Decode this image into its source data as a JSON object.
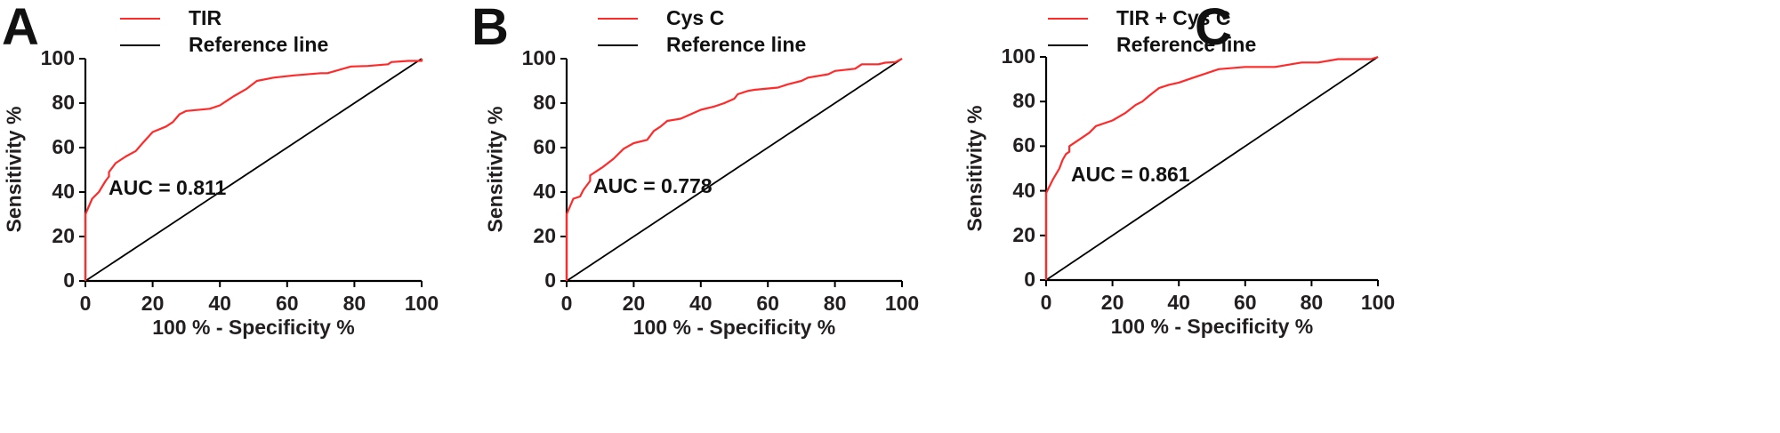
{
  "colors": {
    "roc": "#ff2a2a",
    "reference": "#000000",
    "axis": "#000000",
    "text": "#231f20"
  },
  "chart_data": [
    {
      "type": "line",
      "panel": "A",
      "title": "",
      "legend": [
        "TIR",
        "Reference line"
      ],
      "xlabel": "100 % - Specificity %",
      "ylabel": "Sensitivity %",
      "xlim": [
        0,
        100
      ],
      "ylim": [
        0,
        100
      ],
      "xticks": [
        0,
        20,
        40,
        60,
        80,
        100
      ],
      "yticks": [
        0,
        20,
        40,
        60,
        80,
        100
      ],
      "annotation": "AUC = 0.811",
      "series": [
        {
          "name": "TIR",
          "color": "#ff2a2a",
          "x": [
            0,
            0,
            2,
            4,
            6,
            7,
            7,
            9,
            12,
            15,
            17,
            20,
            24,
            26,
            28,
            30,
            37,
            40,
            44,
            48,
            51,
            56,
            62,
            70,
            72,
            79,
            84,
            90,
            91,
            96,
            100,
            100
          ],
          "y": [
            0,
            30,
            37,
            40,
            45,
            47,
            49,
            53,
            56,
            58.5,
            62,
            67,
            69.5,
            71.5,
            75,
            76.5,
            77.5,
            79,
            83,
            86.5,
            90,
            91.5,
            92.5,
            93.5,
            93.5,
            96.5,
            96.7,
            97.5,
            98.5,
            99,
            99,
            100
          ]
        },
        {
          "name": "Reference line",
          "color": "#000000",
          "x": [
            0,
            100
          ],
          "y": [
            0,
            100
          ]
        }
      ]
    },
    {
      "type": "line",
      "panel": "B",
      "title": "",
      "legend": [
        "Cys C",
        "Reference line"
      ],
      "xlabel": "100 % - Specificity %",
      "ylabel": "Sensitivity %",
      "xlim": [
        0,
        100
      ],
      "ylim": [
        0,
        100
      ],
      "xticks": [
        0,
        20,
        40,
        60,
        80,
        100
      ],
      "yticks": [
        0,
        20,
        40,
        60,
        80,
        100
      ],
      "annotation": "AUC = 0.778",
      "series": [
        {
          "name": "Cys C",
          "color": "#ff2a2a",
          "x": [
            0,
            0,
            2,
            4,
            5,
            7,
            7,
            11,
            14,
            17,
            20,
            24,
            26,
            28,
            30,
            34,
            37,
            40,
            44,
            47,
            50,
            51,
            54,
            56,
            63,
            66,
            70,
            72,
            78,
            80,
            86,
            88,
            93,
            95,
            98,
            100
          ],
          "y": [
            0,
            30,
            37,
            38,
            41,
            45,
            47.5,
            51.5,
            55,
            59.5,
            62,
            63.5,
            67.5,
            69.5,
            72,
            73,
            75,
            77,
            78.5,
            80,
            82,
            84,
            85.5,
            86,
            87,
            88.5,
            90,
            91.5,
            93,
            94.5,
            95.5,
            97.5,
            97.5,
            98.2,
            98.5,
            100
          ]
        },
        {
          "name": "Reference line",
          "color": "#000000",
          "x": [
            0,
            100
          ],
          "y": [
            0,
            100
          ]
        }
      ]
    },
    {
      "type": "line",
      "panel": "C",
      "title": "",
      "legend": [
        "TIR + Cys C",
        "Reference line"
      ],
      "xlabel": "100 % - Specificity %",
      "ylabel": "Sensitivity %",
      "xlim": [
        0,
        100
      ],
      "ylim": [
        0,
        100
      ],
      "xticks": [
        0,
        20,
        40,
        60,
        80,
        100
      ],
      "yticks": [
        0,
        20,
        40,
        60,
        80,
        100
      ],
      "annotation": "AUC = 0.861",
      "series": [
        {
          "name": "TIR + Cys C",
          "color": "#ff2a2a",
          "x": [
            0,
            0,
            2,
            4,
            5,
            6,
            7,
            7,
            10,
            13,
            15,
            20,
            24,
            27,
            29,
            31,
            34,
            37,
            40,
            44,
            47,
            52,
            60,
            69,
            77,
            82,
            88,
            98,
            100
          ],
          "y": [
            0,
            39,
            45,
            50,
            54,
            56.5,
            57.5,
            60,
            63,
            66,
            69,
            71.5,
            75,
            78.5,
            80,
            82.5,
            86,
            87.5,
            88.5,
            90.5,
            92,
            94.5,
            95.5,
            95.5,
            97.5,
            97.5,
            99,
            99,
            100
          ]
        },
        {
          "name": "Reference line",
          "color": "#000000",
          "x": [
            0,
            100
          ],
          "y": [
            0,
            100
          ]
        }
      ]
    }
  ],
  "panels": [
    {
      "letter": "A",
      "legend": [
        "TIR",
        "Reference line"
      ],
      "auc": "AUC = 0.811",
      "xlabel": "100 % - Specificity %",
      "ylabel": "Sensitivity %",
      "xticks": [
        "0",
        "20",
        "40",
        "60",
        "80",
        "100"
      ],
      "yticks": [
        "0",
        "20",
        "40",
        "60",
        "80",
        "100"
      ]
    },
    {
      "letter": "B",
      "legend": [
        "Cys C",
        "Reference line"
      ],
      "auc": "AUC = 0.778",
      "xlabel": "100 % - Specificity %",
      "ylabel": "Sensitivity %",
      "xticks": [
        "0",
        "20",
        "40",
        "60",
        "80",
        "100"
      ],
      "yticks": [
        "0",
        "20",
        "40",
        "60",
        "80",
        "100"
      ]
    },
    {
      "letter": "C",
      "legend": [
        "TIR + Cys C",
        "Reference line"
      ],
      "auc": "AUC = 0.861",
      "xlabel": "100 % - Specificity %",
      "ylabel": "Sensitivity %",
      "xticks": [
        "0",
        "20",
        "40",
        "60",
        "80",
        "100"
      ],
      "yticks": [
        "0",
        "20",
        "40",
        "60",
        "80",
        "100"
      ]
    }
  ]
}
